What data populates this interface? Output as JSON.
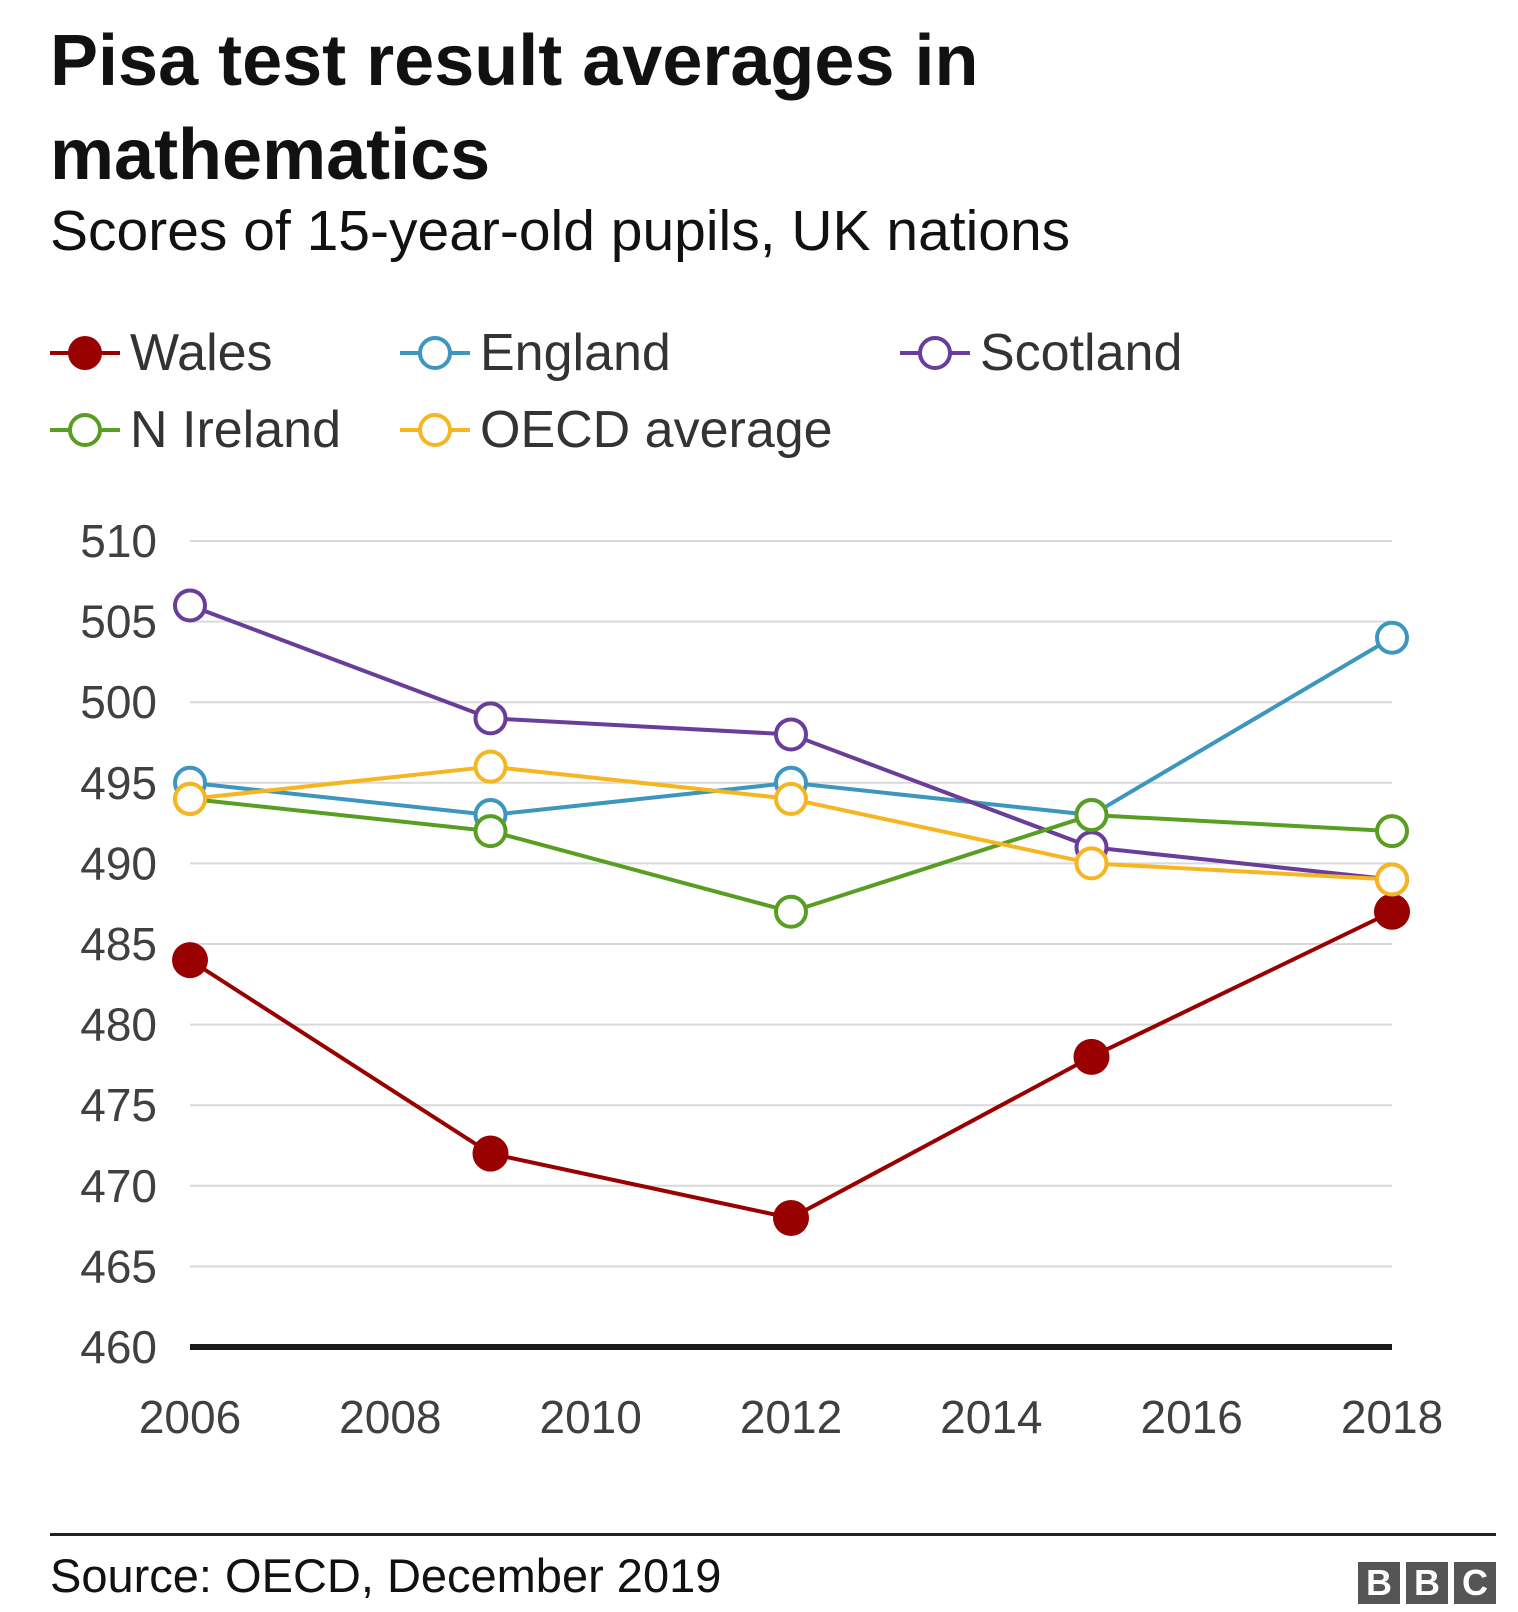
{
  "chart_data": {
    "type": "line",
    "title": "Pisa test result averages in mathematics",
    "subtitle": "Scores of 15-year-old pupils, UK nations",
    "x": [
      2006,
      2009,
      2012,
      2015,
      2018
    ],
    "series": [
      {
        "name": "Wales",
        "color": "#990000",
        "marker": "filled",
        "values": [
          484,
          472,
          468,
          478,
          487
        ]
      },
      {
        "name": "England",
        "color": "#3D96BE",
        "marker": "open",
        "values": [
          495,
          493,
          495,
          493,
          504
        ]
      },
      {
        "name": "Scotland",
        "color": "#6A3D9A",
        "marker": "open",
        "values": [
          506,
          499,
          498,
          491,
          489
        ]
      },
      {
        "name": "N Ireland",
        "color": "#589E23",
        "marker": "open",
        "values": [
          494,
          492,
          487,
          493,
          492
        ]
      },
      {
        "name": "OECD average",
        "color": "#F6B622",
        "marker": "open",
        "values": [
          494,
          496,
          494,
          490,
          489
        ]
      }
    ],
    "ylim": [
      460,
      510
    ],
    "yticks": [
      "460",
      "465",
      "470",
      "475",
      "480",
      "485",
      "490",
      "495",
      "500",
      "505",
      "510"
    ],
    "xlim": [
      2006,
      2018
    ],
    "xticks": [
      "2006",
      "2008",
      "2010",
      "2012",
      "2014",
      "2016",
      "2018"
    ],
    "grid": true,
    "legend": "top-left"
  },
  "footer": {
    "source": "Source: OECD, December 2019",
    "logo": [
      "B",
      "B",
      "C"
    ]
  }
}
